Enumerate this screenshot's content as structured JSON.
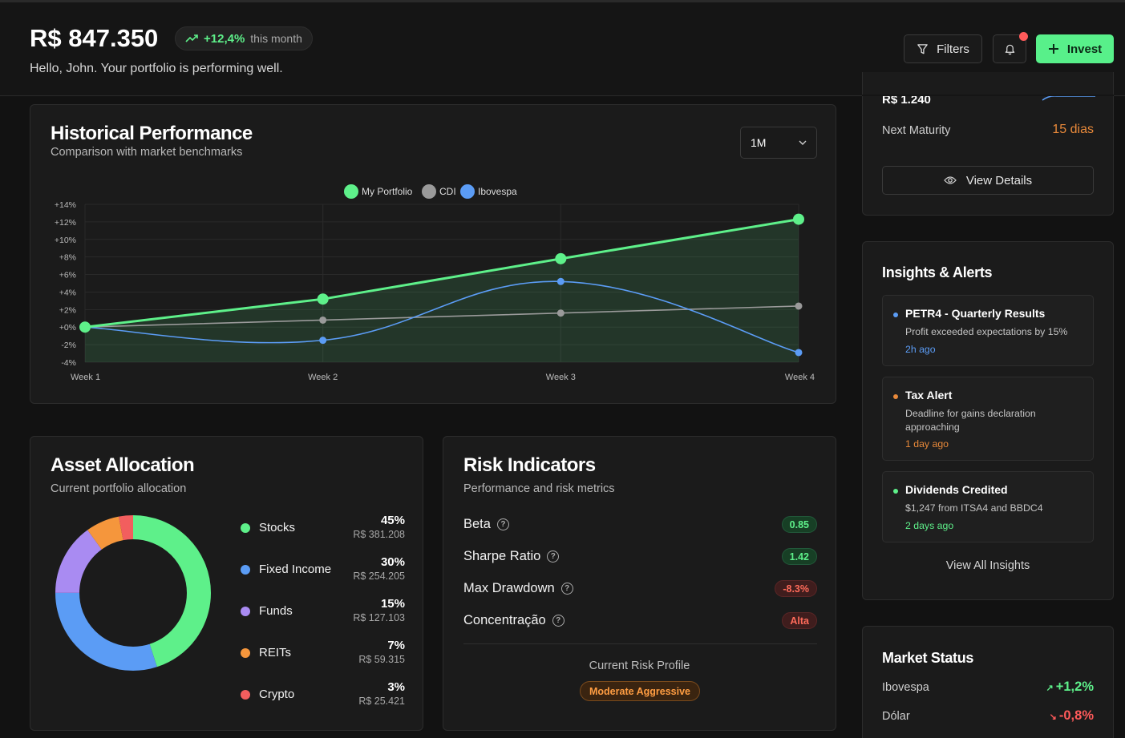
{
  "header": {
    "balance": "R$ 847.350",
    "change_pct": "+12,4%",
    "change_period": "this month",
    "greeting": "Hello, John. Your portfolio is performing well.",
    "filters_label": "Filters",
    "invest_label": "Invest",
    "colors": {
      "accent": "#58f08a",
      "notification": "#ff5a5a"
    }
  },
  "performance": {
    "title": "Historical Performance",
    "subtitle": "Comparison with market benchmarks",
    "range_selected": "1M"
  },
  "chart_data": {
    "type": "line",
    "title": "Historical Performance",
    "categories": [
      "Week 1",
      "Week 2",
      "Week 3",
      "Week 4"
    ],
    "yticks": [
      "+14%",
      "+12%",
      "+10%",
      "+8%",
      "+6%",
      "+4%",
      "+2%",
      "+0%",
      "-2%",
      "-4%"
    ],
    "ylim": [
      -4,
      14
    ],
    "grid": true,
    "legend_position": "top-center",
    "series": [
      {
        "name": "My Portfolio",
        "values": [
          0,
          3.2,
          7.8,
          12.3
        ],
        "color": "#5ef08a",
        "fill": true,
        "smooth": false
      },
      {
        "name": "CDI",
        "values": [
          0,
          0.8,
          1.6,
          2.4
        ],
        "color": "#9a9a9a",
        "fill": false,
        "smooth": false
      },
      {
        "name": "Ibovespa",
        "values": [
          0,
          -1.5,
          5.2,
          -2.9
        ],
        "color": "#5b9cf5",
        "fill": false,
        "smooth": true
      }
    ]
  },
  "allocation": {
    "title": "Asset Allocation",
    "subtitle": "Current portfolio allocation",
    "items": [
      {
        "name": "Stocks",
        "pct": "45%",
        "value": "R$ 381.208",
        "share": 45,
        "color": "#5ef08a"
      },
      {
        "name": "Fixed Income",
        "pct": "30%",
        "value": "R$ 254.205",
        "share": 30,
        "color": "#5b9cf5"
      },
      {
        "name": "Funds",
        "pct": "15%",
        "value": "R$ 127.103",
        "share": 15,
        "color": "#a98bf2"
      },
      {
        "name": "REITs",
        "pct": "7%",
        "value": "R$ 59.315",
        "share": 7,
        "color": "#f5963c"
      },
      {
        "name": "Crypto",
        "pct": "3%",
        "value": "R$ 25.421",
        "share": 3,
        "color": "#f25e5e"
      }
    ]
  },
  "risk": {
    "title": "Risk Indicators",
    "subtitle": "Performance and risk metrics",
    "metrics": [
      {
        "label": "Beta",
        "value": "0.85",
        "status": "good"
      },
      {
        "label": "Sharpe Ratio",
        "value": "1.42",
        "status": "good"
      },
      {
        "label": "Max Drawdown",
        "value": "-8.3%",
        "status": "bad"
      },
      {
        "label": "Concentração",
        "value": "Alta",
        "status": "bad"
      }
    ],
    "profile_label": "Current Risk Profile",
    "profile_value": "Moderate Aggressive"
  },
  "maturity": {
    "amount": "R$ 1.240",
    "next_label": "Next Maturity",
    "next_value": "15 dias",
    "view_details": "View Details"
  },
  "insights": {
    "title": "Insights & Alerts",
    "items": [
      {
        "title": "PETR4 - Quarterly Results",
        "body": "Profit exceeded expectations by 15%",
        "time": "2h ago",
        "dot_color": "#5b9cf5"
      },
      {
        "title": "Tax Alert",
        "body": "Deadline for gains declaration approaching",
        "time": "1 day ago",
        "dot_color": "#e8893a"
      },
      {
        "title": "Dividends Credited",
        "body": "$1,247 from ITSA4 and BBDC4",
        "time": "2 days ago",
        "dot_color": "#5ef08a"
      }
    ],
    "view_all": "View All Insights"
  },
  "market": {
    "title": "Market Status",
    "items": [
      {
        "name": "Ibovespa",
        "value": "+1,2%",
        "direction": "up"
      },
      {
        "name": "Dólar",
        "value": "-0,8%",
        "direction": "down"
      }
    ]
  }
}
